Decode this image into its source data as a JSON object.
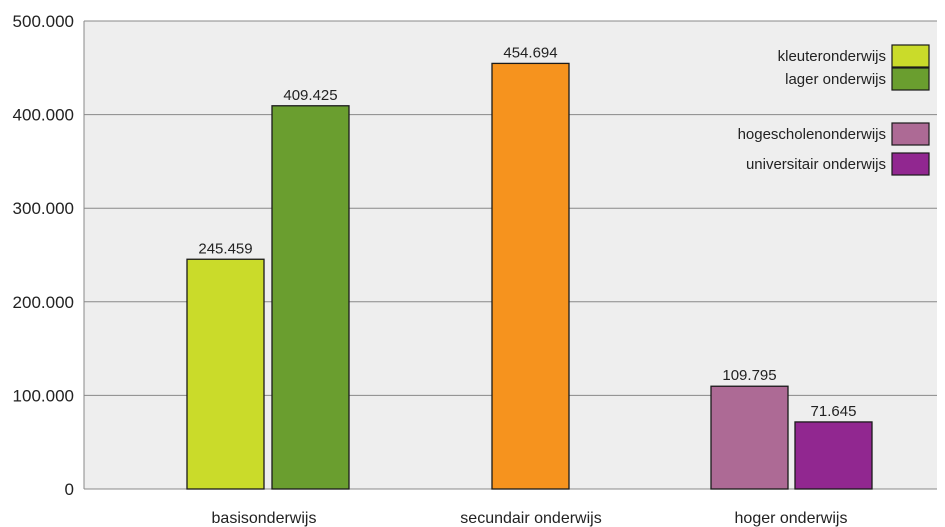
{
  "chart_data": {
    "type": "bar",
    "categories": [
      "basisonderwijs",
      "secundair onderwijs",
      "hoger onderwijs"
    ],
    "y_ticks": [
      "0",
      "100.000",
      "200.000",
      "300.000",
      "400.000",
      "500.000"
    ],
    "ylim": [
      0,
      500000
    ],
    "grid": true,
    "legend_position": "top-right",
    "bars": [
      {
        "category": "basisonderwijs",
        "series": "kleuteronderwijs",
        "value": 245459,
        "label": "245.459",
        "color": "#cadb2a"
      },
      {
        "category": "basisonderwijs",
        "series": "lager onderwijs",
        "value": 409425,
        "label": "409.425",
        "color": "#6a9e2f"
      },
      {
        "category": "secundair onderwijs",
        "series": "",
        "value": 454694,
        "label": "454.694",
        "color": "#f6931e"
      },
      {
        "category": "hoger onderwijs",
        "series": "hogescholenonderwijs",
        "value": 109795,
        "label": "109.795",
        "color": "#ad6a95"
      },
      {
        "category": "hoger onderwijs",
        "series": "universitair onderwijs",
        "value": 71645,
        "label": "71.645",
        "color": "#912790"
      }
    ],
    "legend": [
      {
        "name": "kleuteronderwijs",
        "color": "#cadb2a"
      },
      {
        "name": "lager onderwijs",
        "color": "#6a9e2f"
      },
      {
        "name": "hogescholenonderwijs",
        "color": "#ad6a95"
      },
      {
        "name": "universitair onderwijs",
        "color": "#912790"
      }
    ],
    "colors": {
      "plot_background": "#eeeeee",
      "gridline": "#888888",
      "bar_outline": "#1a1a1a"
    }
  }
}
